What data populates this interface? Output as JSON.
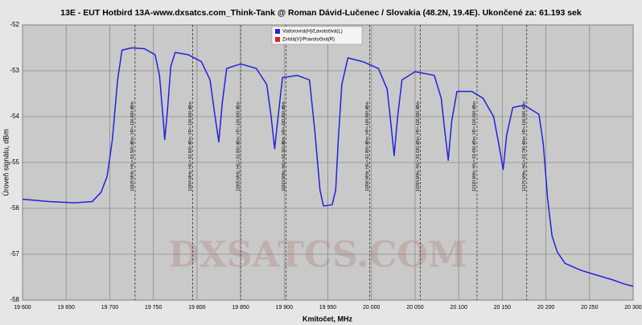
{
  "chart_data": {
    "type": "line",
    "title": "13E - EUT Hotbird 13A-www.dxsatcs.com_Think-Tank @ Roman Dávid-Lučenec / Slovakia (48.2N, 19.4E). Ukončené za: 61.193 sek",
    "x_label": "Kmitočet, MHz",
    "y_label": "Úroveň signálu, dBm",
    "watermark": "DXSATCS.COM",
    "x": [
      19600,
      19630,
      19660,
      19680,
      19690,
      19697,
      19703,
      19709,
      19714,
      19725,
      19740,
      19752,
      19757,
      19761,
      19763,
      19766,
      19770,
      19775,
      19790,
      19805,
      19815,
      19820,
      19825,
      19829,
      19834,
      19850,
      19868,
      19880,
      19885,
      19889,
      19893,
      19898,
      19915,
      19929,
      19935,
      19941,
      19945,
      19955,
      19959,
      19962,
      19966,
      19973,
      19990,
      20008,
      20018,
      20022,
      20026,
      20030,
      20035,
      20050,
      20072,
      20080,
      20084,
      20088,
      20092,
      20098,
      20115,
      20128,
      20140,
      20146,
      20151,
      20155,
      20162,
      20175,
      20192,
      20197,
      20202,
      20207,
      20213,
      20222,
      20240,
      20257,
      20275,
      20290,
      20300
    ],
    "series": [
      {
        "name": "Vodorovná(H)/Ľavotočivá(L)",
        "color": "#2222dd",
        "values": [
          -55.8,
          -55.85,
          -55.88,
          -55.85,
          -55.65,
          -55.3,
          -54.5,
          -53.2,
          -52.55,
          -52.5,
          -52.52,
          -52.65,
          -53.1,
          -54.0,
          -54.5,
          -53.9,
          -52.9,
          -52.6,
          -52.65,
          -52.8,
          -53.2,
          -53.9,
          -54.55,
          -53.7,
          -52.95,
          -52.85,
          -52.95,
          -53.3,
          -54.0,
          -54.7,
          -54.0,
          -53.15,
          -53.1,
          -53.2,
          -54.3,
          -55.6,
          -55.95,
          -55.92,
          -55.6,
          -54.5,
          -53.3,
          -52.72,
          -52.8,
          -52.95,
          -53.4,
          -54.1,
          -54.85,
          -54.0,
          -53.2,
          -53.02,
          -53.1,
          -53.6,
          -54.3,
          -54.95,
          -54.1,
          -53.45,
          -53.45,
          -53.6,
          -54.0,
          -54.6,
          -55.15,
          -54.4,
          -53.8,
          -53.75,
          -53.95,
          -54.6,
          -55.8,
          -56.6,
          -56.95,
          -57.2,
          -57.35,
          -57.45,
          -57.55,
          -57.65,
          -57.7
        ]
      },
      {
        "name": "Zvislá(V)/Pravotočivá(R)",
        "color": "#dd2222",
        "values": [
          null,
          null,
          null,
          null,
          null,
          null,
          null,
          null,
          null,
          null,
          null,
          null,
          null,
          null,
          null,
          null,
          null,
          null,
          null,
          null,
          null,
          null,
          null,
          null,
          null,
          null,
          null,
          null,
          null,
          null,
          null,
          null,
          null,
          null,
          null,
          null,
          null,
          null,
          null,
          null,
          null,
          null,
          null,
          null,
          null,
          null,
          null,
          null,
          null,
          null,
          null,
          null,
          null,
          null,
          null,
          null,
          null,
          null,
          null,
          null,
          null,
          null,
          null,
          null,
          null,
          null,
          null,
          null,
          null,
          null,
          null,
          null,
          null,
          null,
          null
        ]
      }
    ],
    "markers": [
      {
        "x": 19729,
        "label": "11929 MHz; H/L=-52.500 dBm; VR=-100.000 dBm"
      },
      {
        "x": 19795,
        "label": "11994 MHz; H/L=-52.600 dBm; VR=-100.000 dBm"
      },
      {
        "x": 19850,
        "label": "11905 MHz; H/L=-52.850 dBm; VR=-100.000 dBm"
      },
      {
        "x": 19902,
        "label": "11913 MHz; H/L=-53.110 dBm; VR=-100.000 dBm"
      },
      {
        "x": 19998,
        "label": "11996 MHz; H/L=-52.800 dBm; VR=-100.000 dBm"
      },
      {
        "x": 20056,
        "label": "12054 MHz; H/L=-53.030 dBm; VR=-100.000 dBm"
      },
      {
        "x": 20121,
        "label": "12120 MHz; H/L=-53.450 dBm; VR=-100.000 dBm"
      },
      {
        "x": 20178,
        "label": "12175 MHz; H/L=-53.760 dBm; VR=-100.000 dBm"
      }
    ],
    "xlim": [
      19600,
      20300
    ],
    "xticks": [
      {
        "value": 19600,
        "label": "19 600"
      },
      {
        "value": 19650,
        "label": "19 650"
      },
      {
        "value": 19700,
        "label": "19 700"
      },
      {
        "value": 19750,
        "label": "19 750"
      },
      {
        "value": 19800,
        "label": "19 800"
      },
      {
        "value": 19850,
        "label": "19 850"
      },
      {
        "value": 19900,
        "label": "19 900"
      },
      {
        "value": 19950,
        "label": "19 950"
      },
      {
        "value": 20000,
        "label": "20 000"
      },
      {
        "value": 20050,
        "label": "20 050"
      },
      {
        "value": 20100,
        "label": "20 100"
      },
      {
        "value": 20150,
        "label": "20 150"
      },
      {
        "value": 20200,
        "label": "20 200"
      },
      {
        "value": 20250,
        "label": "20 250"
      },
      {
        "value": 20300,
        "label": "20 300"
      }
    ],
    "ylim": [
      -58,
      -52
    ],
    "yticks": [
      -52,
      -53,
      -54,
      -55,
      -56,
      -57,
      -58
    ],
    "grid": true
  }
}
